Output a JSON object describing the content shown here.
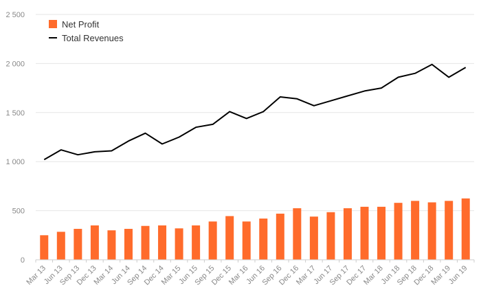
{
  "chart_data": {
    "type": "bar",
    "categories": [
      "Mar 13",
      "Jun 13",
      "Sep 13",
      "Dec 13",
      "Mar 14",
      "Jun 14",
      "Sep 14",
      "Dec 14",
      "Mar 15",
      "Jun 15",
      "Sep 15",
      "Dec 15",
      "Mar 16",
      "Jun 16",
      "Sep 16",
      "Dec 16",
      "Mar 17",
      "Jun 17",
      "Sep 17",
      "Dec 17",
      "Mar 18",
      "Jun 18",
      "Sep 18",
      "Dec 18",
      "Mar 19",
      "Jun 19"
    ],
    "series": [
      {
        "name": "Net Profit",
        "type": "bar",
        "color": "#ff6b2b",
        "values": [
          250,
          285,
          315,
          350,
          300,
          315,
          345,
          350,
          320,
          350,
          390,
          445,
          390,
          420,
          470,
          525,
          440,
          485,
          525,
          540,
          540,
          580,
          600,
          585,
          600,
          625
        ]
      },
      {
        "name": "Total Revenues",
        "type": "line",
        "color": "#000000",
        "values": [
          1020,
          1120,
          1070,
          1100,
          1110,
          1210,
          1290,
          1180,
          1250,
          1350,
          1380,
          1510,
          1440,
          1510,
          1660,
          1640,
          1570,
          1620,
          1670,
          1720,
          1750,
          1860,
          1900,
          1990,
          1860,
          1960
        ]
      }
    ],
    "yticks": [
      "0",
      "500",
      "1 000",
      "1 500",
      "2 000",
      "2 500"
    ],
    "ylim": [
      0,
      2500
    ],
    "grid": true,
    "legend_position": "top-left"
  }
}
